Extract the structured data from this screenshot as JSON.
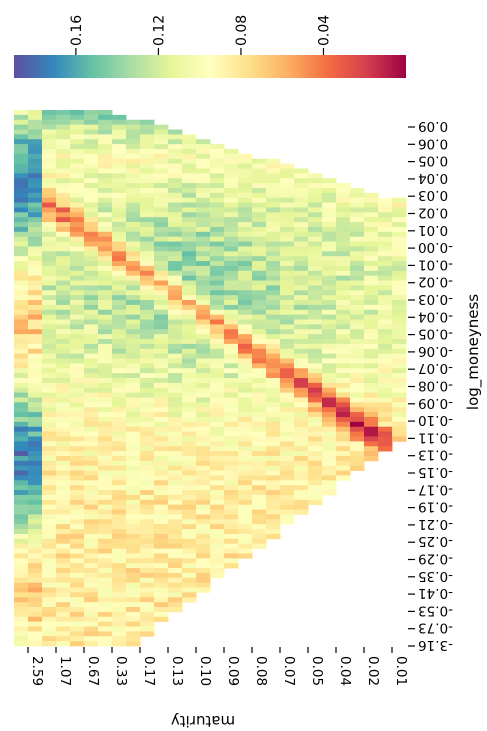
{
  "chart_data": {
    "type": "heatmap",
    "xlabel": "maturity",
    "ylabel": "log_moneyness",
    "x_ticks": [
      "2.59",
      "1.07",
      "0.67",
      "0.33",
      "0.17",
      "0.13",
      "0.10",
      "0.09",
      "0.08",
      "0.07",
      "0.05",
      "0.04",
      "0.02",
      "0.01"
    ],
    "y_ticks": [
      "0.09",
      "0.06",
      "0.05",
      "0.04",
      "0.03",
      "0.02",
      "0.01",
      "-0.00",
      "-0.01",
      "-0.02",
      "-0.03",
      "-0.04",
      "-0.05",
      "-0.06",
      "-0.07",
      "-0.08",
      "-0.09",
      "-0.10",
      "-0.11",
      "-0.13",
      "-0.15",
      "-0.17",
      "-0.19",
      "-0.21",
      "-0.25",
      "-0.29",
      "-0.35",
      "-0.41",
      "-0.53",
      "-0.73",
      "-3.16"
    ],
    "colorbar": {
      "ticks": [
        0.16,
        0.12,
        0.08,
        0.04
      ],
      "range": [
        0.0,
        0.19
      ],
      "colormap": "Spectral"
    },
    "orientation": "rotated-180"
  }
}
